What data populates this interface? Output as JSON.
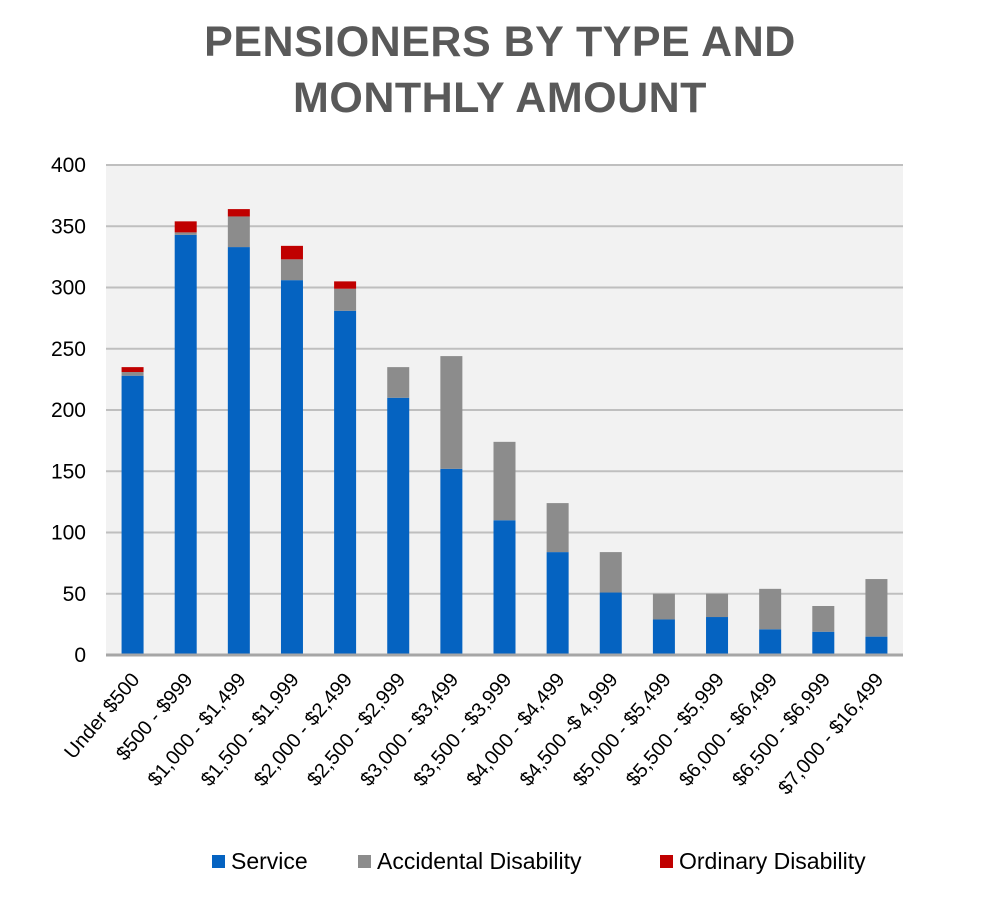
{
  "chart_data": {
    "type": "bar",
    "stacked": true,
    "title": "PENSIONERS BY TYPE AND MONTHLY AMOUNT",
    "title_lines": [
      "PENSIONERS BY TYPE AND",
      "MONTHLY AMOUNT"
    ],
    "categories": [
      "Under $500",
      "$500 - $999",
      "$1,000 - $1,499",
      "$1,500 - $1,999",
      "$2,000 - $2,499",
      "$2,500 - $2,999",
      "$3,000 - $3,499",
      "$3,500 - $3,999",
      "$4,000 - $4,499",
      "$4,500 -$ 4,999",
      "$5,000 - $5,499",
      "$5,500 - $5,999",
      "$6,000 - $6,499",
      "$6,500 - $6,999",
      "$7,000 - $16,499"
    ],
    "series": [
      {
        "name": "Service",
        "color": "#0563c1",
        "values": [
          228,
          343,
          333,
          306,
          281,
          210,
          152,
          110,
          84,
          51,
          29,
          31,
          21,
          19,
          15
        ]
      },
      {
        "name": "Accidental Disability",
        "color": "#8c8c8c",
        "values": [
          3,
          2,
          25,
          17,
          18,
          25,
          92,
          64,
          40,
          33,
          21,
          19,
          33,
          21,
          47
        ]
      },
      {
        "name": "Ordinary Disability",
        "color": "#c00000",
        "values": [
          4,
          9,
          6,
          11,
          6,
          0,
          0,
          0,
          0,
          0,
          0,
          0,
          0,
          0,
          0
        ]
      }
    ],
    "y_ticks": [
      "0",
      "50",
      "100",
      "150",
      "200",
      "250",
      "300",
      "350",
      "400"
    ],
    "ylim": [
      0,
      400
    ],
    "grid": true,
    "legend_position": "bottom"
  }
}
